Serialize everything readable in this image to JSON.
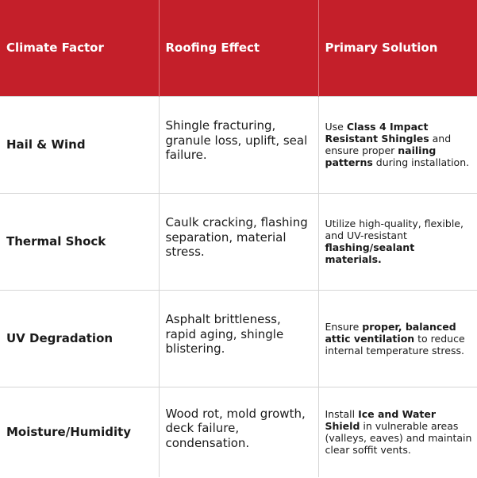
{
  "headers": [
    "Climate Factor",
    "Roofing Effect",
    "Primary Solution"
  ],
  "rows": [
    {
      "factor": "Hail & Wind",
      "effect": "Shingle fracturing, granule loss, uplift, seal failure.",
      "solution": {
        "p1": "Use ",
        "b1": "Class 4 Impact Resistant Shingles",
        "p2": " and ensure proper ",
        "b2": "nailing patterns",
        "p3": " during installation."
      }
    },
    {
      "factor": "Thermal Shock",
      "effect": "Caulk cracking, flashing separation, material stress.",
      "solution": {
        "p1": "Utilize high-quality, flexible, and UV-resistant ",
        "b1": "flashing/sealant materials.",
        "p2": "",
        "b2": "",
        "p3": ""
      }
    },
    {
      "factor": "UV Degradation",
      "effect": "Asphalt brittleness, rapid aging, shingle blistering.",
      "solution": {
        "p1": "Ensure ",
        "b1": "proper, balanced attic ventilation",
        "p2": " to reduce internal temperature stress.",
        "b2": "",
        "p3": ""
      }
    },
    {
      "factor": "Moisture/Humidity",
      "effect": "Wood rot, mold growth, deck failure, condensation.",
      "solution": {
        "p1": "Install ",
        "b1": "Ice and Water Shield",
        "p2": " in vulnerable areas (valleys, eaves) and maintain clear soffit vents.",
        "b2": "",
        "p3": ""
      }
    }
  ]
}
